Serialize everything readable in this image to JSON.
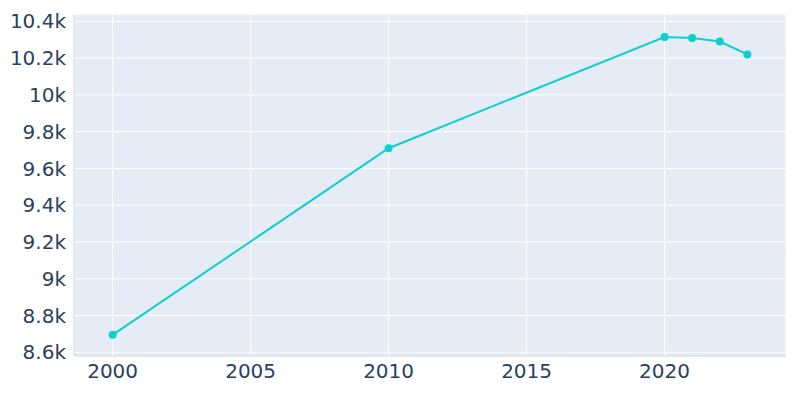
{
  "chart_data": {
    "type": "line",
    "x": [
      2000,
      2010,
      2020,
      2021,
      2022,
      2023
    ],
    "values": [
      8695,
      9710,
      10315,
      10310,
      10290,
      10220
    ],
    "color": "#0dcfcf",
    "xlim": [
      1998.6,
      2024.4
    ],
    "xticks": [
      2000,
      2005,
      2010,
      2015,
      2020
    ],
    "ylim": [
      8580,
      10440
    ],
    "yticks": [
      {
        "value": 8600,
        "label": "8.6k"
      },
      {
        "value": 8800,
        "label": "8.8k"
      },
      {
        "value": 9000,
        "label": "9k"
      },
      {
        "value": 9200,
        "label": "9.2k"
      },
      {
        "value": 9400,
        "label": "9.4k"
      },
      {
        "value": 9600,
        "label": "9.6k"
      },
      {
        "value": 9800,
        "label": "9.8k"
      },
      {
        "value": 10000,
        "label": "10k"
      },
      {
        "value": 10200,
        "label": "10.2k"
      },
      {
        "value": 10400,
        "label": "10.4k"
      }
    ],
    "grid": true,
    "marker": "circle"
  }
}
